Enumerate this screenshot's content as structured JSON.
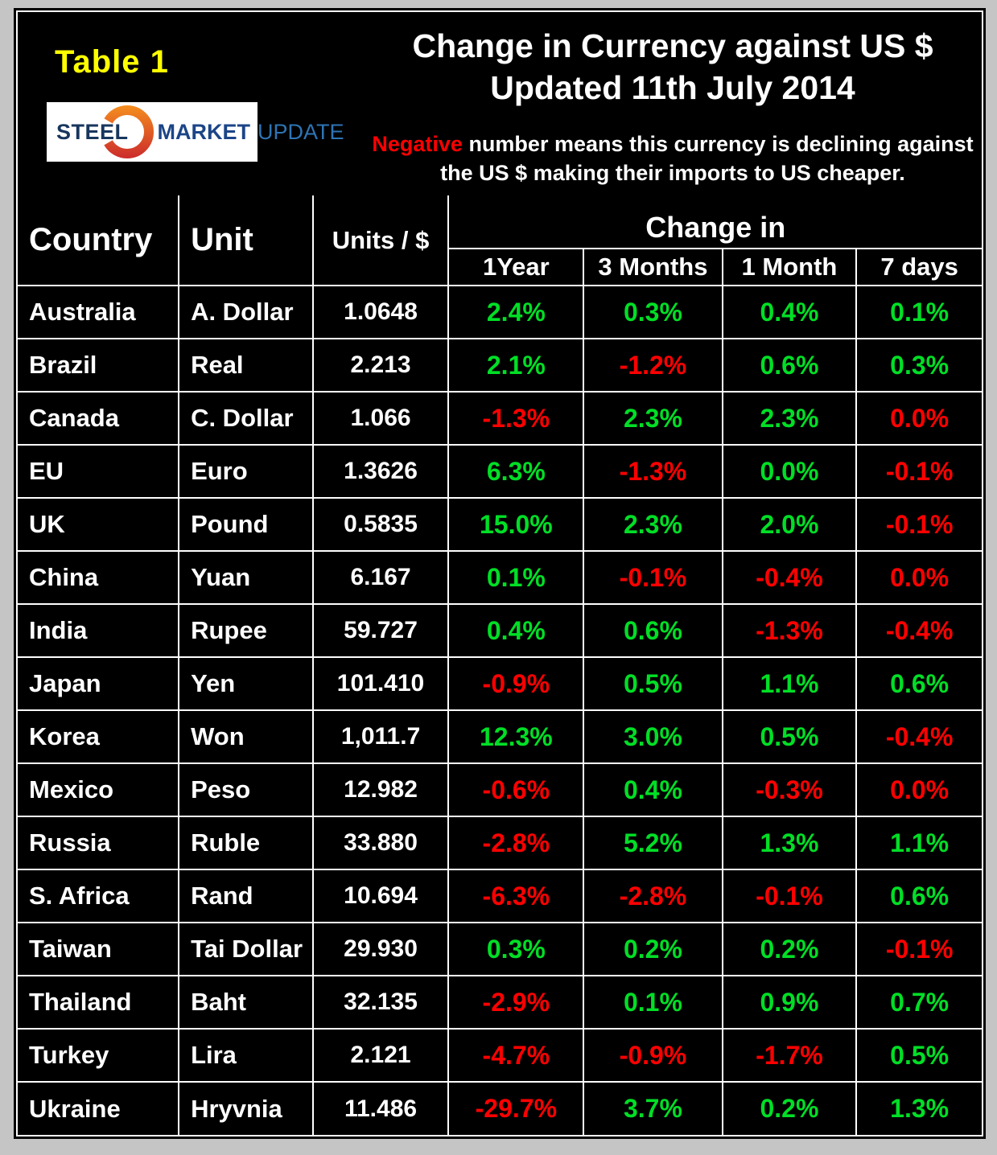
{
  "header": {
    "table_label": "Table 1",
    "logo": {
      "steel": "STEEL",
      "market": "MARKET",
      "update": "UPDATE"
    },
    "title_line1": "Change in Currency against US $",
    "title_line2": "Updated 11th July 2014",
    "note_highlight": "Negative",
    "note_rest": " number means this currency is declining against the US $ making their imports to US cheaper."
  },
  "colors": {
    "positive": "#00DF26",
    "negative": "#FF0000",
    "table_label_yellow": "#FFFF00",
    "logo_steel": "#17365D",
    "logo_market": "#1C4587",
    "logo_update": "#2E74B5",
    "logo_swoosh_top": "#F7941E",
    "logo_swoosh_bottom": "#C9252C"
  },
  "chart_data": {
    "type": "table",
    "title": "Change in Currency against US $",
    "subtitle": "Updated 11th July 2014",
    "change_in_label": "Change in",
    "columns": [
      "Country",
      "Unit",
      "Units / $",
      "1Year",
      "3 Months",
      "1 Month",
      "7 days"
    ],
    "rows": [
      {
        "country": "Australia",
        "unit": "A. Dollar",
        "units_per_dollar": "1.0648",
        "changes": [
          [
            "2.4%",
            "pos"
          ],
          [
            "0.3%",
            "pos"
          ],
          [
            "0.4%",
            "pos"
          ],
          [
            "0.1%",
            "pos"
          ]
        ]
      },
      {
        "country": "Brazil",
        "unit": "Real",
        "units_per_dollar": "2.213",
        "changes": [
          [
            "2.1%",
            "pos"
          ],
          [
            "-1.2%",
            "neg"
          ],
          [
            "0.6%",
            "pos"
          ],
          [
            "0.3%",
            "pos"
          ]
        ]
      },
      {
        "country": "Canada",
        "unit": "C. Dollar",
        "units_per_dollar": "1.066",
        "changes": [
          [
            "-1.3%",
            "neg"
          ],
          [
            "2.3%",
            "pos"
          ],
          [
            "2.3%",
            "pos"
          ],
          [
            "0.0%",
            "neg"
          ]
        ]
      },
      {
        "country": "EU",
        "unit": "Euro",
        "units_per_dollar": "1.3626",
        "changes": [
          [
            "6.3%",
            "pos"
          ],
          [
            "-1.3%",
            "neg"
          ],
          [
            "0.0%",
            "pos"
          ],
          [
            "-0.1%",
            "neg"
          ]
        ]
      },
      {
        "country": "UK",
        "unit": "Pound",
        "units_per_dollar": "0.5835",
        "changes": [
          [
            "15.0%",
            "pos"
          ],
          [
            "2.3%",
            "pos"
          ],
          [
            "2.0%",
            "pos"
          ],
          [
            "-0.1%",
            "neg"
          ]
        ]
      },
      {
        "country": "China",
        "unit": "Yuan",
        "units_per_dollar": "6.167",
        "changes": [
          [
            "0.1%",
            "pos"
          ],
          [
            "-0.1%",
            "neg"
          ],
          [
            "-0.4%",
            "neg"
          ],
          [
            "0.0%",
            "neg"
          ]
        ]
      },
      {
        "country": "India",
        "unit": "Rupee",
        "units_per_dollar": "59.727",
        "changes": [
          [
            "0.4%",
            "pos"
          ],
          [
            "0.6%",
            "pos"
          ],
          [
            "-1.3%",
            "neg"
          ],
          [
            "-0.4%",
            "neg"
          ]
        ]
      },
      {
        "country": "Japan",
        "unit": "Yen",
        "units_per_dollar": "101.410",
        "changes": [
          [
            "-0.9%",
            "neg"
          ],
          [
            "0.5%",
            "pos"
          ],
          [
            "1.1%",
            "pos"
          ],
          [
            "0.6%",
            "pos"
          ]
        ]
      },
      {
        "country": "Korea",
        "unit": "Won",
        "units_per_dollar": "1,011.7",
        "changes": [
          [
            "12.3%",
            "pos"
          ],
          [
            "3.0%",
            "pos"
          ],
          [
            "0.5%",
            "pos"
          ],
          [
            "-0.4%",
            "neg"
          ]
        ]
      },
      {
        "country": "Mexico",
        "unit": "Peso",
        "units_per_dollar": "12.982",
        "changes": [
          [
            "-0.6%",
            "neg"
          ],
          [
            "0.4%",
            "pos"
          ],
          [
            "-0.3%",
            "neg"
          ],
          [
            "0.0%",
            "neg"
          ]
        ]
      },
      {
        "country": "Russia",
        "unit": "Ruble",
        "units_per_dollar": "33.880",
        "changes": [
          [
            "-2.8%",
            "neg"
          ],
          [
            "5.2%",
            "pos"
          ],
          [
            "1.3%",
            "pos"
          ],
          [
            "1.1%",
            "pos"
          ]
        ]
      },
      {
        "country": "S. Africa",
        "unit": "Rand",
        "units_per_dollar": "10.694",
        "changes": [
          [
            "-6.3%",
            "neg"
          ],
          [
            "-2.8%",
            "neg"
          ],
          [
            "-0.1%",
            "neg"
          ],
          [
            "0.6%",
            "pos"
          ]
        ]
      },
      {
        "country": "Taiwan",
        "unit": "Tai Dollar",
        "units_per_dollar": "29.930",
        "changes": [
          [
            "0.3%",
            "pos"
          ],
          [
            "0.2%",
            "pos"
          ],
          [
            "0.2%",
            "pos"
          ],
          [
            "-0.1%",
            "neg"
          ]
        ]
      },
      {
        "country": "Thailand",
        "unit": "Baht",
        "units_per_dollar": "32.135",
        "changes": [
          [
            "-2.9%",
            "neg"
          ],
          [
            "0.1%",
            "pos"
          ],
          [
            "0.9%",
            "pos"
          ],
          [
            "0.7%",
            "pos"
          ]
        ]
      },
      {
        "country": "Turkey",
        "unit": "Lira",
        "units_per_dollar": "2.121",
        "changes": [
          [
            "-4.7%",
            "neg"
          ],
          [
            "-0.9%",
            "neg"
          ],
          [
            "-1.7%",
            "neg"
          ],
          [
            "0.5%",
            "pos"
          ]
        ]
      },
      {
        "country": "Ukraine",
        "unit": "Hryvnia",
        "units_per_dollar": "11.486",
        "changes": [
          [
            "-29.7%",
            "neg"
          ],
          [
            "3.7%",
            "pos"
          ],
          [
            "0.2%",
            "pos"
          ],
          [
            "1.3%",
            "pos"
          ]
        ]
      }
    ]
  }
}
